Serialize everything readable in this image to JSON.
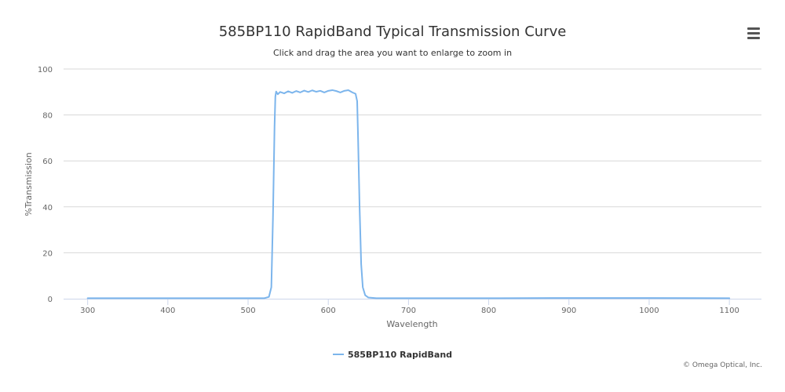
{
  "title": "585BP110 RapidBand Typical Transmission Curve",
  "subtitle": "Click and drag the area you want to enlarge to zoom in",
  "credits": "© Omega Optical, Inc.",
  "menu_icon": "hamburger-menu-icon",
  "colors": {
    "series": "#7cb5ec",
    "grid": "#d8d8d8",
    "axis": "#ccd6eb",
    "text": "#333333"
  },
  "chart_data": {
    "type": "line",
    "title": "585BP110 RapidBand Typical Transmission Curve",
    "xlabel": "Wavelength",
    "ylabel": "%Transmission",
    "xlim": [
      270,
      1140
    ],
    "ylim": [
      0,
      100
    ],
    "x_ticks": [
      300,
      400,
      500,
      600,
      700,
      800,
      900,
      1000,
      1100
    ],
    "y_ticks": [
      0,
      20,
      40,
      60,
      80,
      100
    ],
    "grid": true,
    "legend_position": "bottom-center",
    "series": [
      {
        "name": "585BP110 RapidBand",
        "points": [
          [
            300,
            0.2
          ],
          [
            400,
            0.2
          ],
          [
            500,
            0.2
          ],
          [
            520,
            0.2
          ],
          [
            526,
            0.8
          ],
          [
            529,
            5
          ],
          [
            531,
            35
          ],
          [
            533,
            75
          ],
          [
            534,
            88
          ],
          [
            535,
            90.2
          ],
          [
            537,
            89
          ],
          [
            540,
            90
          ],
          [
            545,
            89.4
          ],
          [
            550,
            90.3
          ],
          [
            555,
            89.6
          ],
          [
            560,
            90.4
          ],
          [
            565,
            89.8
          ],
          [
            570,
            90.6
          ],
          [
            575,
            90
          ],
          [
            580,
            90.7
          ],
          [
            585,
            90.1
          ],
          [
            590,
            90.5
          ],
          [
            595,
            89.8
          ],
          [
            600,
            90.5
          ],
          [
            605,
            90.8
          ],
          [
            610,
            90.4
          ],
          [
            615,
            89.8
          ],
          [
            620,
            90.5
          ],
          [
            625,
            90.8
          ],
          [
            630,
            89.8
          ],
          [
            634,
            89.2
          ],
          [
            636,
            86
          ],
          [
            637,
            72
          ],
          [
            639,
            40
          ],
          [
            641,
            15
          ],
          [
            643,
            5
          ],
          [
            646,
            1.5
          ],
          [
            650,
            0.5
          ],
          [
            660,
            0.2
          ],
          [
            700,
            0.2
          ],
          [
            800,
            0.2
          ],
          [
            880,
            0.3
          ],
          [
            1000,
            0.3
          ],
          [
            1100,
            0.2
          ]
        ]
      }
    ]
  }
}
